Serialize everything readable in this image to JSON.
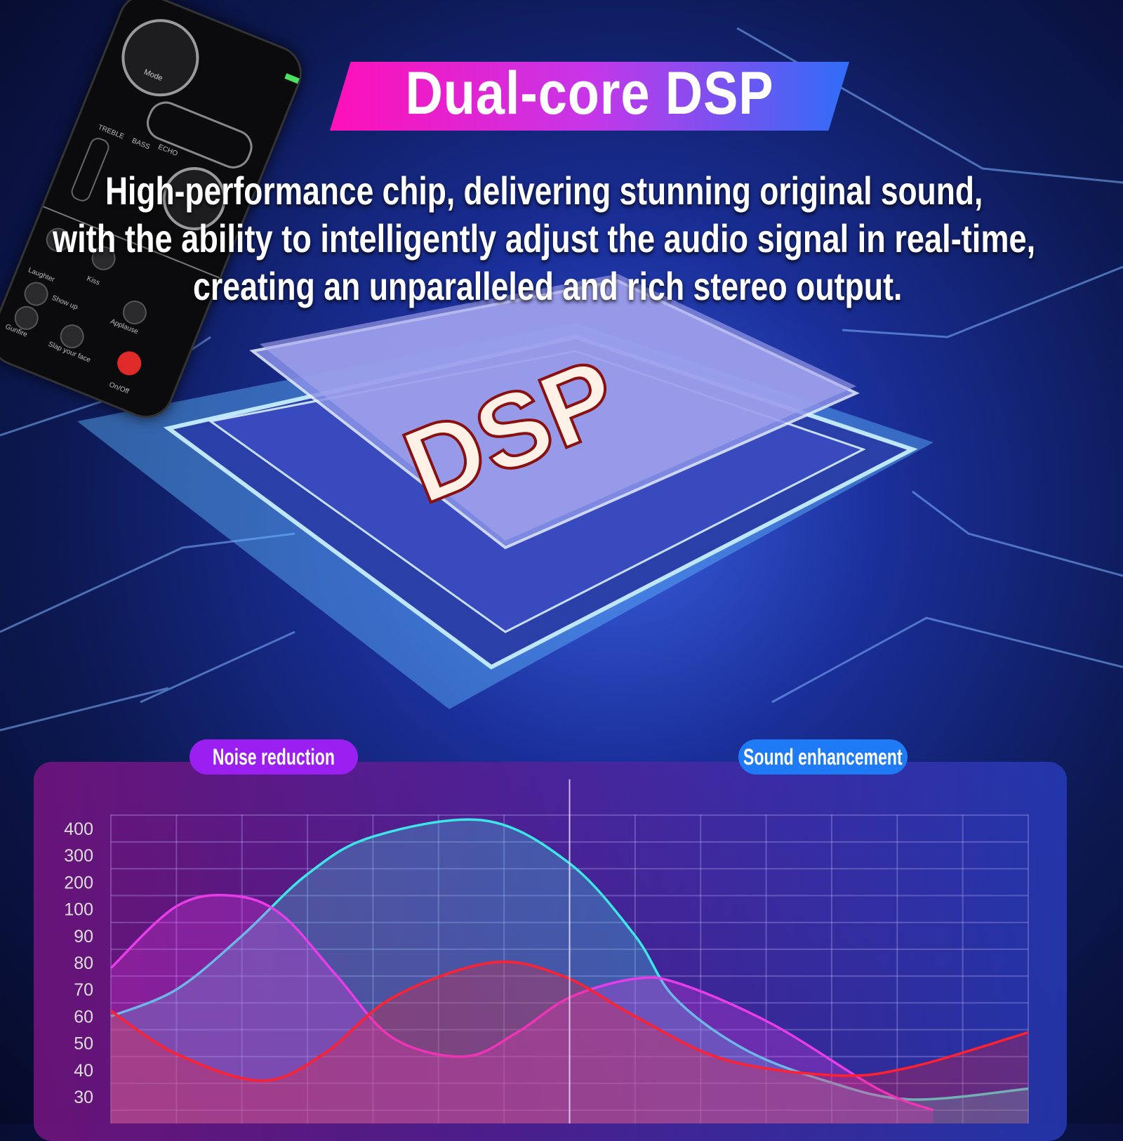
{
  "header": {
    "title": "Dual-core DSP",
    "subtitle_lines": [
      "High-performance chip, delivering stunning original sound,",
      "with the ability to intelligently adjust the audio signal in real-time,",
      "creating an unparalleled and rich stereo output."
    ]
  },
  "chip": {
    "label": "DSP"
  },
  "device": {
    "mode_label": "Mode",
    "treble_label": "TREBLE",
    "bass_label": "BASS",
    "echo_label": "ECHO",
    "buttons": [
      "Laughter",
      "Kiss",
      "Show up",
      "Applause",
      "Gunfire",
      "Slap your face",
      "On/Off"
    ]
  },
  "badges": {
    "left": {
      "label": "Noise reduction",
      "color": "#9b1ff0"
    },
    "right": {
      "label": "Sound enhancement",
      "color": "#1e7bf5"
    }
  },
  "chart_data": {
    "type": "area",
    "title": "",
    "xlabel": "",
    "ylabel": "",
    "y_ticks": [
      400,
      300,
      200,
      100,
      90,
      80,
      70,
      60,
      50,
      40,
      30
    ],
    "y_scale": "ordinal (evenly spaced tick labels)",
    "grid": true,
    "divider_at_x": 7,
    "series": [
      {
        "color": "#3de6e6",
        "points": [
          [
            0,
            60
          ],
          [
            1,
            70
          ],
          [
            2,
            90
          ],
          [
            3,
            230
          ],
          [
            4,
            370
          ],
          [
            5.7,
            430
          ],
          [
            7,
            270
          ],
          [
            8,
            90
          ],
          [
            8.6,
            67
          ],
          [
            9.65,
            48
          ],
          [
            10.9,
            36
          ],
          [
            12.2,
            29
          ],
          [
            14,
            33
          ]
        ]
      },
      {
        "color": "#e83ce8",
        "points": [
          [
            0,
            78
          ],
          [
            1,
            110
          ],
          [
            1.85,
            150
          ],
          [
            2.6,
            98
          ],
          [
            3.45,
            75
          ],
          [
            4.3,
            52
          ],
          [
            5.4,
            45
          ],
          [
            6.2,
            54
          ],
          [
            7,
            67
          ],
          [
            8,
            74
          ],
          [
            8.7,
            72
          ],
          [
            10.1,
            57
          ],
          [
            11.7,
            33
          ],
          [
            12.55,
            25
          ]
        ]
      },
      {
        "color": "#ff2030",
        "points": [
          [
            0,
            62
          ],
          [
            1,
            46
          ],
          [
            2.3,
            36
          ],
          [
            3.25,
            46
          ],
          [
            4.3,
            67
          ],
          [
            5.8,
            80
          ],
          [
            6.9,
            75
          ],
          [
            8,
            60
          ],
          [
            9.35,
            44
          ],
          [
            11.05,
            38
          ],
          [
            12.2,
            41
          ],
          [
            14,
            54
          ]
        ]
      }
    ]
  }
}
